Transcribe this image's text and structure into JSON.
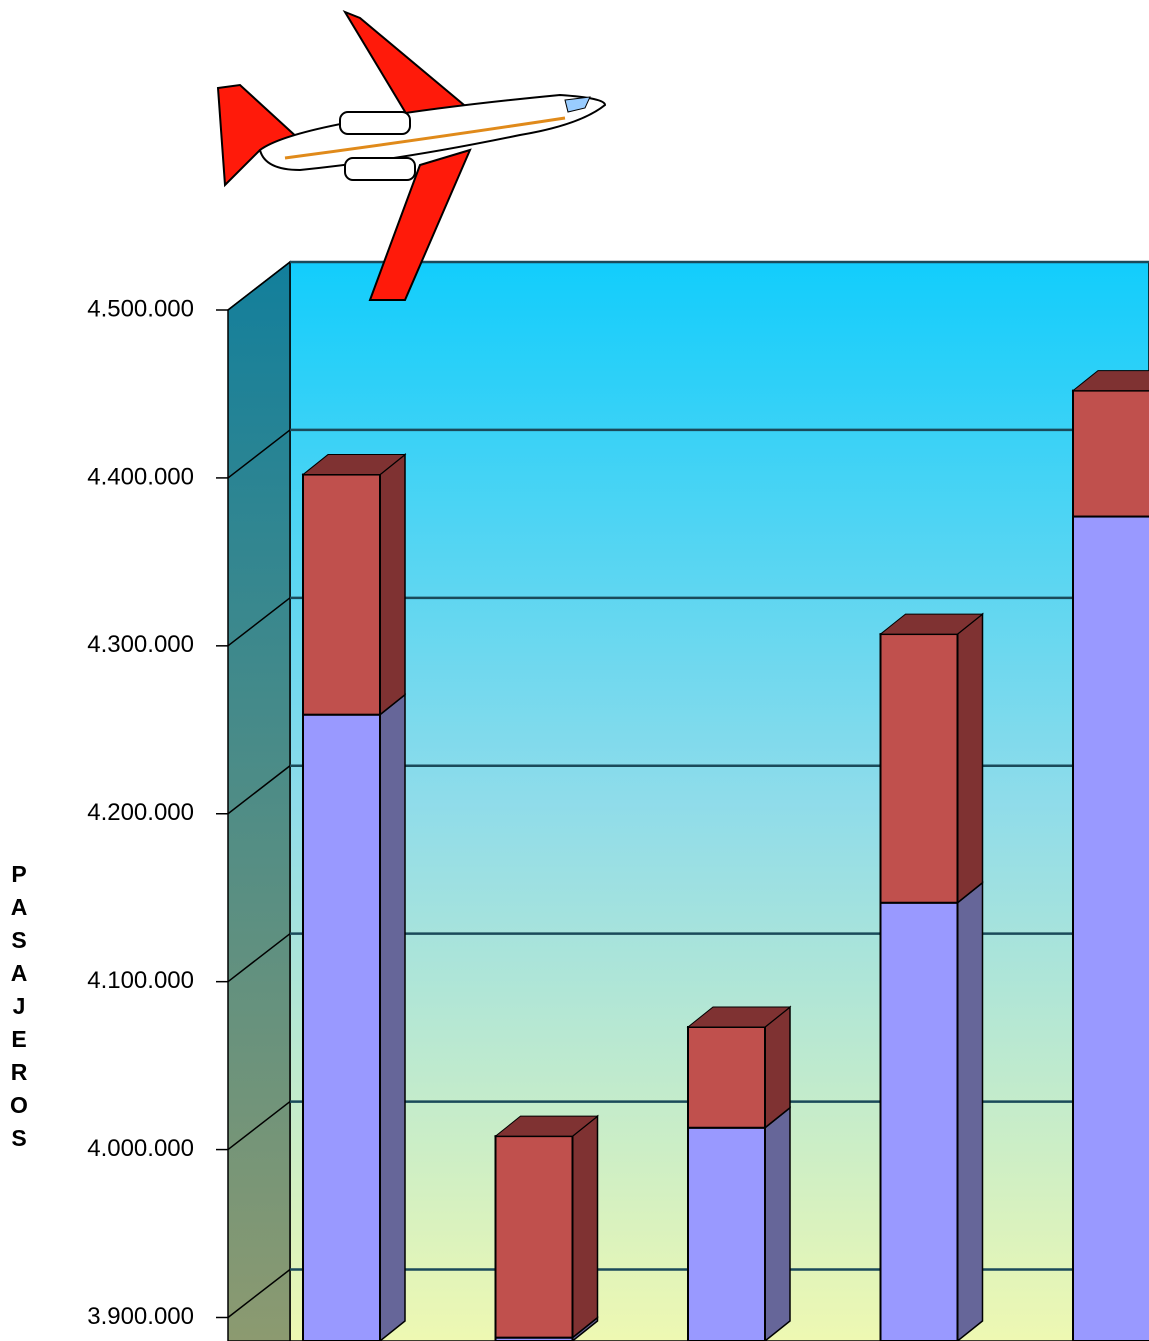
{
  "chart_data": {
    "type": "bar3d_stacked",
    "y_label": "PASAJEROS",
    "categories": [
      null,
      null,
      null,
      null,
      null
    ],
    "series": [
      {
        "color": "#9999ff",
        "side_color": "#666699",
        "values": [
          4259000,
          3888000,
          4013000,
          4147000,
          4377000
        ]
      },
      {
        "color": "#c0504d",
        "side_color": "#7f3232",
        "values": [
          143000,
          120000,
          60000,
          160000,
          75000
        ]
      }
    ],
    "ylim": [
      3886000,
      4500000
    ],
    "yticks": [
      {
        "value": 3900000,
        "label": "3.900.000"
      },
      {
        "value": 4000000,
        "label": "4.000.000"
      },
      {
        "value": 4100000,
        "label": "4.100.000"
      },
      {
        "value": 4200000,
        "label": "4.200.000"
      },
      {
        "value": 4300000,
        "label": "4.300.000"
      },
      {
        "value": 4400000,
        "label": "4.400.000"
      },
      {
        "value": 4500000,
        "label": "4.500.000"
      }
    ],
    "grid": true
  }
}
